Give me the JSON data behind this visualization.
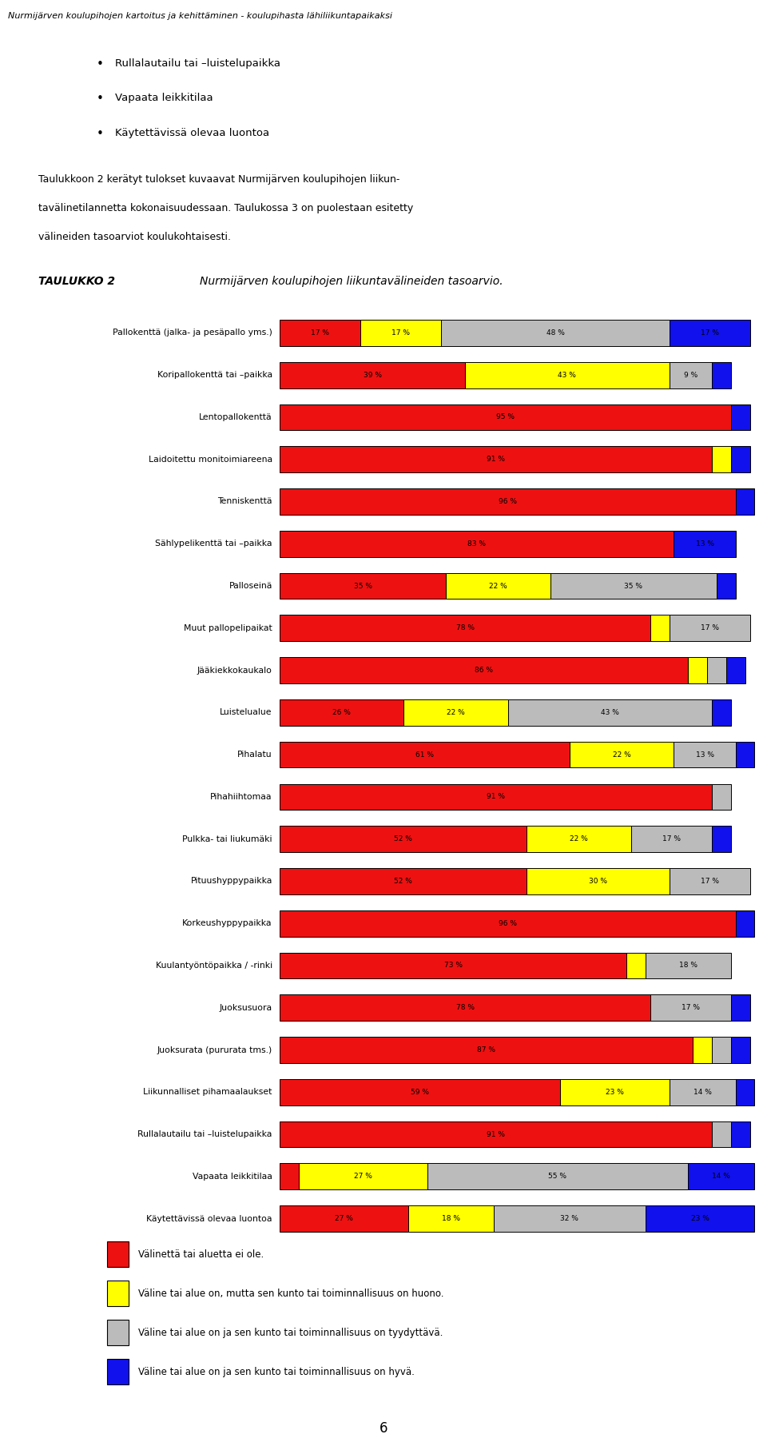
{
  "title_top": "Nurmijärven koulupihojen kartoitus ja kehittäminen - koulupihasta lähiliikuntapaikaksi",
  "bullet_texts": [
    "Rullalautailu tai –luistelupaikka",
    "Vapaata leikkitilaa",
    "Käytettävissä olevaa luontoa"
  ],
  "paragraph": "Taulukkoon 2 kerätyt tulokset kuvaavat Nurmijärven koulupihojen liikun-\ntavälinetilannetta kokonaisuudessaan. Taulukossa 3 on puolestaan esitetty\nvälineiden tasoarviot koulukohtaisesti.",
  "taulukko_label": "TAULUKKO 2",
  "taulukko_text": "Nurmijärven koulupihojen liikuntavälineiden tasoarvio.",
  "categories": [
    "Pallokenttä (jalka- ja pesäpallo yms.)",
    "Koripallokenttä tai –paikka",
    "Lentopallokenttä",
    "Laidoitettu monitoimiareena",
    "Tenniskenttä",
    "Sählypelikenttä tai –paikka",
    "Palloseinä",
    "Muut pallopelipaikat",
    "Jääkiekkokaukalo",
    "Luistelualue",
    "Pihalatu",
    "Pihahiihtomaa",
    "Pulkka- tai liukumäki",
    "Pituushyppypaikka",
    "Korkeushyppypaikka",
    "Kuulantyöntöpaikka / -rinki",
    "Juoksusuora",
    "Juoksurata (pururata tms.)",
    "Liikunnalliset pihamaalaukset",
    "Rullalautailu tai –luistelupaikka",
    "Vapaata leikkitilaa",
    "Käytettävissä olevaa luontoa"
  ],
  "data": [
    [
      17,
      17,
      48,
      17
    ],
    [
      39,
      43,
      9,
      4
    ],
    [
      95,
      0,
      0,
      4
    ],
    [
      91,
      4,
      0,
      4
    ],
    [
      96,
      0,
      0,
      4
    ],
    [
      83,
      0,
      0,
      13
    ],
    [
      35,
      22,
      35,
      4
    ],
    [
      78,
      4,
      17,
      0
    ],
    [
      86,
      4,
      4,
      4
    ],
    [
      26,
      22,
      43,
      4
    ],
    [
      61,
      22,
      13,
      4
    ],
    [
      91,
      0,
      4,
      0
    ],
    [
      52,
      22,
      17,
      4
    ],
    [
      52,
      30,
      17,
      0
    ],
    [
      96,
      0,
      0,
      4
    ],
    [
      73,
      4,
      18,
      0
    ],
    [
      78,
      0,
      17,
      4
    ],
    [
      87,
      4,
      4,
      4
    ],
    [
      59,
      23,
      14,
      4
    ],
    [
      91,
      0,
      4,
      4
    ],
    [
      4,
      27,
      55,
      14
    ],
    [
      27,
      18,
      32,
      23
    ]
  ],
  "colors": [
    "#ee1111",
    "#ffff00",
    "#bbbbbb",
    "#1111ee"
  ],
  "legend_labels": [
    "Välinettä tai aluetta ei ole.",
    "Väline tai alue on, mutta sen kunto tai toiminnallisuus on huono.",
    "Väline tai alue on ja sen kunto tai toiminnallisuus on tyydyttävä.",
    "Väline tai alue on ja sen kunto tai toiminnallisuus on hyvä."
  ],
  "figsize": [
    9.6,
    18.14
  ]
}
